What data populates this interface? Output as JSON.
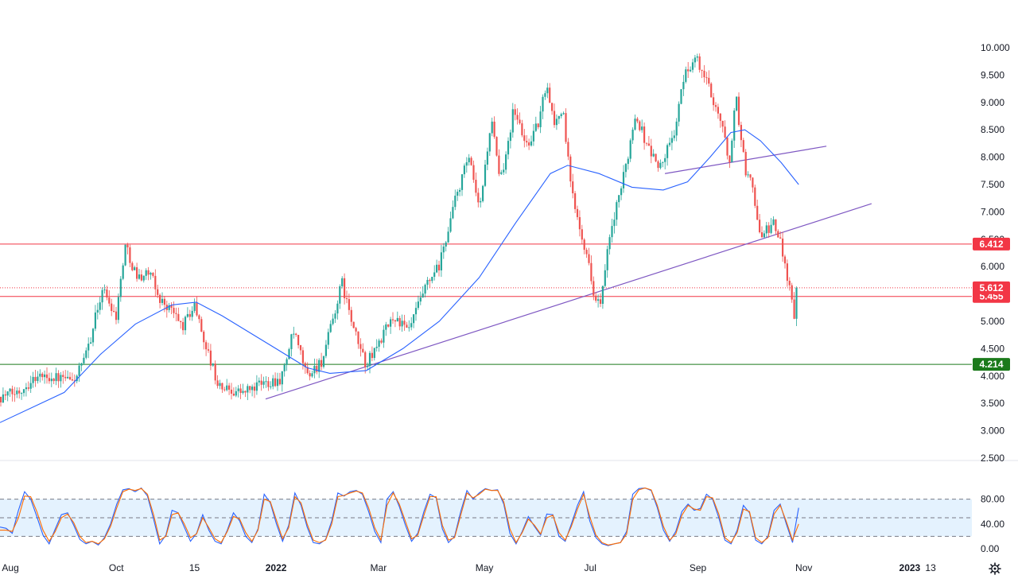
{
  "chart_data": [
    {
      "type": "candlestick",
      "panel": "price",
      "yaxis": {
        "ticks": [
          "10.000",
          "9.500",
          "9.000",
          "8.500",
          "8.000",
          "7.500",
          "7.000",
          "6.500",
          "6.000",
          "5.500",
          "5.000",
          "4.500",
          "4.000",
          "3.500",
          "3.000",
          "2.500"
        ],
        "ylim": [
          2.5,
          10.0
        ]
      },
      "xaxis": {
        "labels": [
          "Aug",
          "Oct",
          "15",
          "2022",
          "Mar",
          "May",
          "Jul",
          "Sep",
          "Nov",
          "2023",
          "13"
        ]
      },
      "series_path": [
        [
          "2021-07-26",
          3.62
        ],
        [
          "2021-08-05",
          3.7
        ],
        [
          "2021-08-16",
          4.0
        ],
        [
          "2021-08-26",
          3.98
        ],
        [
          "2021-09-06",
          3.9
        ],
        [
          "2021-09-13",
          4.3
        ],
        [
          "2021-09-23",
          5.6
        ],
        [
          "2021-10-01",
          5.1
        ],
        [
          "2021-10-06",
          6.4
        ],
        [
          "2021-10-13",
          5.8
        ],
        [
          "2021-10-20",
          5.9
        ],
        [
          "2021-10-26",
          5.4
        ],
        [
          "2021-11-02",
          5.2
        ],
        [
          "2021-11-08",
          4.9
        ],
        [
          "2021-11-15",
          5.3
        ],
        [
          "2021-11-22",
          4.5
        ],
        [
          "2021-11-29",
          3.8
        ],
        [
          "2021-12-13",
          3.7
        ],
        [
          "2021-12-27",
          3.9
        ],
        [
          "2022-01-04",
          3.95
        ],
        [
          "2022-01-11",
          4.8
        ],
        [
          "2022-01-19",
          4.0
        ],
        [
          "2022-01-28",
          4.3
        ],
        [
          "2022-02-08",
          5.7
        ],
        [
          "2022-02-15",
          4.8
        ],
        [
          "2022-02-22",
          4.2
        ],
        [
          "2022-03-01",
          4.6
        ],
        [
          "2022-03-10",
          5.1
        ],
        [
          "2022-03-18",
          4.8
        ],
        [
          "2022-03-28",
          5.6
        ],
        [
          "2022-04-05",
          6.0
        ],
        [
          "2022-04-14",
          7.2
        ],
        [
          "2022-04-22",
          8.0
        ],
        [
          "2022-04-28",
          7.0
        ],
        [
          "2022-05-05",
          8.7
        ],
        [
          "2022-05-10",
          7.5
        ],
        [
          "2022-05-18",
          8.9
        ],
        [
          "2022-05-25",
          8.2
        ],
        [
          "2022-06-01",
          8.6
        ],
        [
          "2022-06-06",
          9.4
        ],
        [
          "2022-06-10",
          8.6
        ],
        [
          "2022-06-15",
          8.9
        ],
        [
          "2022-06-20",
          7.4
        ],
        [
          "2022-06-27",
          6.5
        ],
        [
          "2022-07-04",
          5.4
        ],
        [
          "2022-07-07",
          5.3
        ],
        [
          "2022-07-12",
          6.5
        ],
        [
          "2022-07-20",
          7.6
        ],
        [
          "2022-07-27",
          8.8
        ],
        [
          "2022-08-03",
          8.2
        ],
        [
          "2022-08-10",
          7.8
        ],
        [
          "2022-08-18",
          8.4
        ],
        [
          "2022-08-25",
          9.6
        ],
        [
          "2022-08-31",
          9.8
        ],
        [
          "2022-09-07",
          9.3
        ],
        [
          "2022-09-14",
          8.7
        ],
        [
          "2022-09-19",
          7.9
        ],
        [
          "2022-09-23",
          9.1
        ],
        [
          "2022-09-28",
          7.8
        ],
        [
          "2022-10-03",
          7.4
        ],
        [
          "2022-10-07",
          6.5
        ],
        [
          "2022-10-14",
          6.8
        ],
        [
          "2022-10-19",
          6.4
        ],
        [
          "2022-10-24",
          5.6
        ],
        [
          "2022-10-27",
          4.95
        ],
        [
          "2022-10-29",
          5.61
        ]
      ],
      "ma_path": [
        [
          "2021-07-26",
          3.15
        ],
        [
          "2021-09-01",
          3.7
        ],
        [
          "2021-09-22",
          4.4
        ],
        [
          "2021-10-12",
          4.95
        ],
        [
          "2021-11-02",
          5.3
        ],
        [
          "2021-11-16",
          5.35
        ],
        [
          "2021-12-01",
          5.1
        ],
        [
          "2022-01-01",
          4.5
        ],
        [
          "2022-01-19",
          4.15
        ],
        [
          "2022-02-01",
          4.05
        ],
        [
          "2022-02-22",
          4.1
        ],
        [
          "2022-03-15",
          4.5
        ],
        [
          "2022-04-05",
          5.0
        ],
        [
          "2022-04-28",
          5.8
        ],
        [
          "2022-05-19",
          6.8
        ],
        [
          "2022-06-08",
          7.7
        ],
        [
          "2022-06-18",
          7.85
        ],
        [
          "2022-07-06",
          7.7
        ],
        [
          "2022-07-25",
          7.45
        ],
        [
          "2022-08-12",
          7.4
        ],
        [
          "2022-08-26",
          7.55
        ],
        [
          "2022-09-08",
          8.0
        ],
        [
          "2022-09-20",
          8.45
        ],
        [
          "2022-09-28",
          8.5
        ],
        [
          "2022-10-07",
          8.3
        ],
        [
          "2022-10-19",
          7.9
        ],
        [
          "2022-10-29",
          7.5
        ]
      ],
      "moving_average_end": 7.5,
      "trendlines": [
        {
          "from": [
            "2021-12-26",
            3.58
          ],
          "to": [
            "2022-12-10",
            7.15
          ],
          "color": "#7e57c2"
        },
        {
          "from": [
            "2022-08-13",
            7.7
          ],
          "to": [
            "2022-11-14",
            8.2
          ],
          "color": "#7e57c2"
        }
      ],
      "horizontal_lines": [
        {
          "value": 6.412,
          "label": "6.412",
          "color": "#f23645"
        },
        {
          "value": 5.455,
          "label": "5.455",
          "color": "#f23645"
        },
        {
          "value": 4.214,
          "label": "4.214",
          "color": "#1b7a1b"
        }
      ],
      "last_price": {
        "value": 5.612,
        "label": "5.612",
        "color": "#f23645"
      },
      "candle_colors": {
        "up": "#26a69a",
        "down": "#ef5350"
      }
    },
    {
      "type": "line",
      "panel": "stochastic",
      "yaxis": {
        "ticks": [
          "80.00",
          "40.00",
          "0.00"
        ],
        "ylim": [
          0,
          100
        ]
      },
      "levels": [
        80,
        50,
        20
      ],
      "band": [
        20,
        80
      ],
      "series": [
        {
          "color": "#2962ff",
          "x_range": [
            "2021-07-26",
            "2022-10-29"
          ],
          "values": [
            35,
            33,
            25,
            62,
            92,
            80,
            52,
            22,
            8,
            32,
            55,
            58,
            38,
            15,
            8,
            12,
            6,
            18,
            40,
            72,
            95,
            97,
            92,
            98,
            85,
            48,
            8,
            22,
            62,
            58,
            35,
            12,
            25,
            55,
            30,
            12,
            8,
            30,
            58,
            45,
            20,
            10,
            32,
            88,
            74,
            40,
            12,
            38,
            90,
            70,
            35,
            10,
            8,
            15,
            45,
            90,
            85,
            92,
            94,
            88,
            60,
            28,
            10,
            80,
            92,
            68,
            38,
            12,
            25,
            60,
            88,
            82,
            32,
            10,
            20,
            60,
            94,
            80,
            90,
            97,
            94,
            95,
            72,
            25,
            8,
            28,
            52,
            36,
            22,
            56,
            55,
            20,
            12,
            40,
            70,
            92,
            45,
            18,
            8,
            5,
            8,
            10,
            28,
            88,
            97,
            98,
            94,
            66,
            30,
            12,
            28,
            60,
            72,
            62,
            65,
            88,
            80,
            50,
            14,
            8,
            30,
            70,
            58,
            14,
            8,
            20,
            62,
            72,
            40,
            10,
            66
          ]
        },
        {
          "color": "#ff6d00",
          "x_range": [
            "2021-07-26",
            "2022-10-29"
          ],
          "values": [
            30,
            30,
            28,
            50,
            85,
            84,
            60,
            30,
            12,
            28,
            50,
            56,
            42,
            20,
            10,
            12,
            8,
            16,
            36,
            66,
            92,
            96,
            94,
            97,
            88,
            55,
            14,
            20,
            55,
            58,
            40,
            18,
            24,
            50,
            34,
            16,
            10,
            28,
            52,
            48,
            26,
            12,
            30,
            80,
            76,
            46,
            16,
            34,
            84,
            74,
            40,
            14,
            10,
            14,
            40,
            84,
            86,
            90,
            93,
            90,
            66,
            34,
            14,
            70,
            90,
            72,
            44,
            16,
            22,
            54,
            84,
            84,
            38,
            14,
            18,
            54,
            90,
            82,
            88,
            96,
            94,
            94,
            76,
            32,
            10,
            26,
            48,
            38,
            24,
            50,
            54,
            26,
            14,
            36,
            64,
            88,
            52,
            22,
            10,
            6,
            8,
            10,
            24,
            80,
            95,
            98,
            95,
            70,
            36,
            14,
            24,
            54,
            70,
            64,
            62,
            84,
            82,
            56,
            18,
            10,
            26,
            64,
            60,
            18,
            10,
            18,
            56,
            70,
            44,
            14,
            40
          ]
        }
      ]
    }
  ]
}
